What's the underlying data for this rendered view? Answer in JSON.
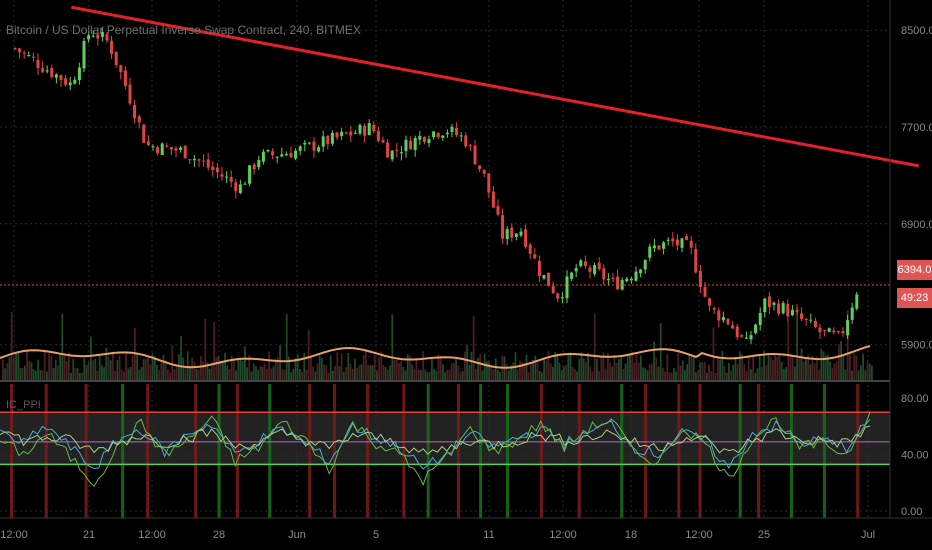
{
  "header": {
    "title": "Bitcoin / US Dollar Perpetual Inverse Swap Contract, 240, BITMEX"
  },
  "indicator": {
    "title": "IC_PPI"
  },
  "price_axis": {
    "ticks": [
      {
        "value": 8500,
        "label": "8500.0"
      },
      {
        "value": 7700,
        "label": "7700.0"
      },
      {
        "value": 6900,
        "label": "6900.0"
      },
      {
        "value": 5900,
        "label": "5900.0"
      }
    ],
    "last_price": 6394.0,
    "last_price_label": "6394.0",
    "countdown_label": "49:23"
  },
  "time_axis": {
    "labels": [
      "12:00",
      "21",
      "12:00",
      "28",
      "Jun",
      "5",
      "11",
      "12:00",
      "18",
      "12:00",
      "25",
      "Jul"
    ]
  },
  "indicator_axis": {
    "ticks": [
      {
        "value": 80,
        "label": "80.00"
      },
      {
        "value": 40,
        "label": "40.00"
      },
      {
        "value": 0,
        "label": "0.00"
      }
    ],
    "upper_band": 70,
    "lower_band": 33
  },
  "colors": {
    "background": "#000000",
    "up": "#5bd05b",
    "down": "#e04545",
    "trendline": "#e3202a",
    "price_line": "#e04545",
    "volume_ma": "#e8a06a",
    "ind_blue": "#4aa8e0",
    "ind_green": "#66bb44",
    "ind_pale": "#a8cc88",
    "grid": "#2a2a2a",
    "axis_text": "#8a8a8a"
  },
  "chart_data": {
    "type": "candlestick",
    "title": "Bitcoin / US Dollar Perpetual Inverse Swap Contract, 240, BITMEX",
    "price_range": [
      5600,
      8750
    ],
    "trendline": {
      "start": {
        "date": "May 19",
        "price": 8690
      },
      "end": {
        "date": "Jun 30",
        "price": 7420
      }
    },
    "close_path": [
      {
        "date": "May 16",
        "price": 8350
      },
      {
        "date": "May 19",
        "price": 8050
      },
      {
        "date": "May 20",
        "price": 8500
      },
      {
        "date": "May 21",
        "price": 8400
      },
      {
        "date": "May 22",
        "price": 8000
      },
      {
        "date": "May 23",
        "price": 7550
      },
      {
        "date": "May 25",
        "price": 7500
      },
      {
        "date": "May 27",
        "price": 7300
      },
      {
        "date": "May 28",
        "price": 7200
      },
      {
        "date": "May 29",
        "price": 7450
      },
      {
        "date": "May 31",
        "price": 7500
      },
      {
        "date": "Jun 2",
        "price": 7600
      },
      {
        "date": "Jun 4",
        "price": 7700
      },
      {
        "date": "Jun 5",
        "price": 7480
      },
      {
        "date": "Jun 7",
        "price": 7650
      },
      {
        "date": "Jun 8",
        "price": 7680
      },
      {
        "date": "Jun 9",
        "price": 7600
      },
      {
        "date": "Jun 10",
        "price": 7300
      },
      {
        "date": "Jun 11",
        "price": 6800
      },
      {
        "date": "Jun 12",
        "price": 6850
      },
      {
        "date": "Jun 13",
        "price": 6500
      },
      {
        "date": "Jun 14",
        "price": 6300
      },
      {
        "date": "Jun 15",
        "price": 6550
      },
      {
        "date": "Jun 16",
        "price": 6500
      },
      {
        "date": "Jun 17",
        "price": 6400
      },
      {
        "date": "Jun 18",
        "price": 6500
      },
      {
        "date": "Jun 19",
        "price": 6700
      },
      {
        "date": "Jun 20",
        "price": 6750
      },
      {
        "date": "Jun 21",
        "price": 6700
      },
      {
        "date": "Jun 22",
        "price": 6200
      },
      {
        "date": "Jun 23",
        "price": 6100
      },
      {
        "date": "Jun 24",
        "price": 5900
      },
      {
        "date": "Jun 25",
        "price": 6250
      },
      {
        "date": "Jun 26",
        "price": 6200
      },
      {
        "date": "Jun 27",
        "price": 6100
      },
      {
        "date": "Jun 28",
        "price": 6000
      },
      {
        "date": "Jun 29",
        "price": 5950
      },
      {
        "date": "Jun 30",
        "price": 6394
      }
    ],
    "indicator_series": [
      {
        "color": "#4aa8e0",
        "values": [
          55,
          48,
          60,
          45,
          30,
          50,
          58,
          42,
          55,
          62,
          40,
          50,
          58,
          48,
          35,
          60,
          52,
          45,
          30,
          40,
          55,
          45,
          52,
          58,
          48,
          55,
          62,
          45,
          40,
          55,
          50,
          30,
          55,
          60,
          48,
          50,
          45,
          65
        ]
      },
      {
        "color": "#66bb44",
        "values": [
          50,
          40,
          55,
          38,
          20,
          45,
          62,
          40,
          50,
          66,
          35,
          45,
          63,
          50,
          30,
          62,
          48,
          40,
          22,
          38,
          58,
          42,
          50,
          62,
          45,
          58,
          65,
          40,
          35,
          60,
          48,
          22,
          52,
          65,
          45,
          48,
          40,
          70
        ]
      },
      {
        "color": "#a8cc88",
        "values": [
          58,
          50,
          52,
          50,
          42,
          48,
          54,
          48,
          52,
          56,
          46,
          48,
          55,
          50,
          44,
          54,
          52,
          48,
          40,
          44,
          50,
          47,
          50,
          54,
          50,
          52,
          56,
          48,
          45,
          52,
          50,
          40,
          50,
          56,
          50,
          50,
          48,
          60
        ]
      }
    ]
  }
}
